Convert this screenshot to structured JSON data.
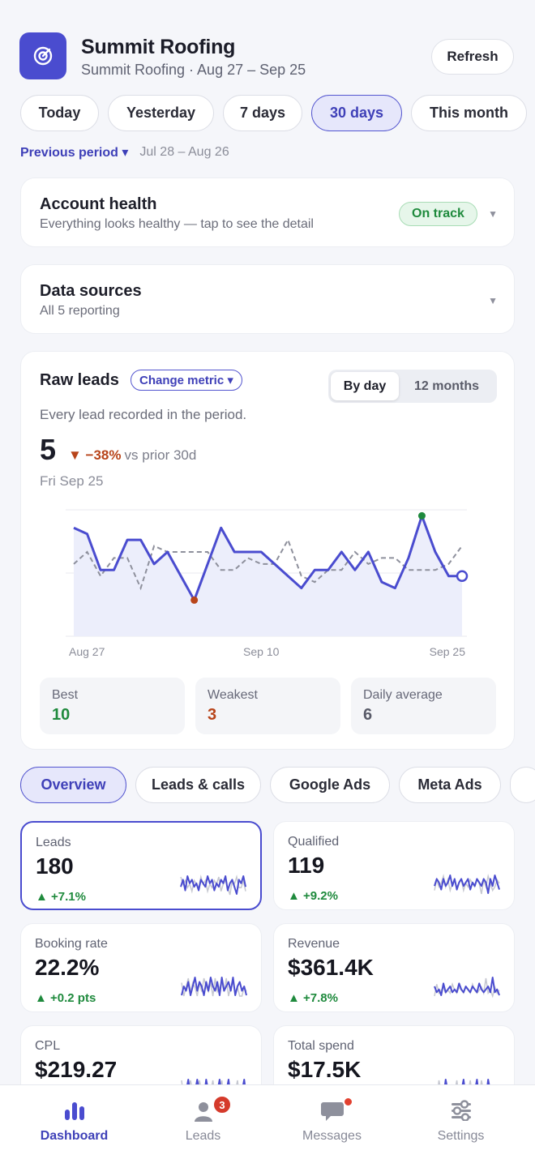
{
  "header": {
    "title": "Summit Roofing",
    "subtitle": "Summit Roofing · Aug 27 – Sep 25",
    "refresh_label": "Refresh",
    "logo_icon": "target-icon",
    "accent": "#4a4ccf"
  },
  "ranges": [
    "Today",
    "Yesterday",
    "7 days",
    "30 days",
    "This month"
  ],
  "active_range": "30 days",
  "compare": {
    "label": "Previous period ▾",
    "dates": "Jul 28 – Aug 26"
  },
  "health": {
    "title": "Account health",
    "subtitle": "Everything looks healthy — tap to see the detail",
    "badge": "On track"
  },
  "sources": {
    "title": "Data sources",
    "subtitle": "All 5 reporting"
  },
  "chart_card": {
    "title": "Raw leads",
    "metric_button": "Change metric ▾",
    "view_day": "By day",
    "view_months": "12 months",
    "description": "Every lead recorded in the period.",
    "value": "5",
    "delta": "▼ −38%",
    "delta_vs": "vs prior 30d",
    "date": "Fri Sep 25",
    "stats": [
      {
        "label": "Best",
        "value": "10",
        "color": "#1f8a3d"
      },
      {
        "label": "Weakest",
        "value": "3",
        "color": "#b8441a"
      },
      {
        "label": "Daily average",
        "value": "6",
        "color": "#585a68"
      }
    ]
  },
  "chart_data": {
    "type": "line",
    "x": [
      "Aug 27",
      "Aug 28",
      "Aug 29",
      "Aug 30",
      "Aug 31",
      "Sep 1",
      "Sep 2",
      "Sep 3",
      "Sep 4",
      "Sep 5",
      "Sep 6",
      "Sep 7",
      "Sep 8",
      "Sep 9",
      "Sep 10",
      "Sep 11",
      "Sep 12",
      "Sep 13",
      "Sep 14",
      "Sep 15",
      "Sep 16",
      "Sep 17",
      "Sep 18",
      "Sep 19",
      "Sep 20",
      "Sep 21",
      "Sep 22",
      "Sep 23",
      "Sep 24",
      "Sep 25"
    ],
    "x_tick_labels": [
      "Aug 27",
      "Sep 10",
      "Sep 25"
    ],
    "series": [
      {
        "values": [
          9,
          8.5,
          5.5,
          5.5,
          8,
          8,
          6,
          7,
          5,
          3,
          6,
          9,
          7,
          7,
          7,
          6,
          5,
          4,
          5.5,
          5.5,
          7,
          5.5,
          7,
          4.5,
          4,
          6.5,
          10,
          7,
          5,
          5
        ]
      },
      {
        "values": [
          6,
          7,
          5,
          6.5,
          6.5,
          4,
          7.5,
          7,
          7,
          7,
          7,
          5.5,
          5.5,
          6.5,
          6,
          6,
          8,
          5,
          4.5,
          5.5,
          5.5,
          7,
          6,
          6.5,
          6.5,
          5.5,
          5.5,
          5.5,
          6,
          7.5
        ]
      }
    ],
    "best_index": 26,
    "weakest_index": 9,
    "ylim": [
      0,
      10.5
    ],
    "grid": true
  },
  "tabs": [
    "Overview",
    "Leads & calls",
    "Google Ads",
    "Meta Ads"
  ],
  "active_tab": "Overview",
  "kpis": [
    {
      "label": "Leads",
      "value": "180",
      "delta": "▲ +7.1%",
      "selected": true,
      "spark": [
        4,
        6,
        3,
        7,
        5,
        6,
        4,
        5,
        3,
        6,
        5,
        4,
        7,
        5,
        6,
        3,
        5,
        4,
        6,
        5,
        7,
        3,
        5,
        6,
        4,
        2,
        6,
        5,
        7,
        4
      ]
    },
    {
      "label": "Qualified",
      "value": "119",
      "delta": "▲ +9.2%",
      "selected": false,
      "spark": [
        4,
        6,
        5,
        3,
        6,
        4,
        5,
        7,
        4,
        6,
        3,
        5,
        6,
        4,
        5,
        6,
        3,
        5,
        4,
        6,
        5,
        4,
        6,
        5,
        2,
        6,
        4,
        7,
        5,
        3
      ]
    },
    {
      "label": "Booking rate",
      "value": "22.2%",
      "delta": "▲ +0.2 pts",
      "selected": false,
      "spark": [
        3,
        5,
        4,
        6,
        3,
        5,
        7,
        4,
        6,
        5,
        3,
        6,
        4,
        7,
        5,
        4,
        6,
        3,
        7,
        4,
        5,
        6,
        4,
        7,
        3,
        5,
        6,
        4,
        5,
        3
      ]
    },
    {
      "label": "Revenue",
      "value": "$361.4K",
      "delta": "▲ +7.8%",
      "selected": false,
      "spark": [
        5,
        3,
        4,
        2,
        6,
        3,
        4,
        5,
        3,
        4,
        3,
        6,
        4,
        3,
        5,
        4,
        3,
        5,
        4,
        3,
        6,
        4,
        3,
        4,
        5,
        3,
        8,
        3,
        4,
        2
      ]
    },
    {
      "label": "CPL",
      "value": "$219.27",
      "delta": "",
      "selected": false,
      "spark": [
        3,
        5,
        4,
        6,
        3,
        5,
        4,
        6,
        4,
        5,
        3,
        6,
        4,
        5,
        3,
        5,
        4,
        6,
        3,
        5,
        4,
        6,
        3,
        4,
        5,
        3,
        5,
        4,
        6,
        3
      ]
    },
    {
      "label": "Total spend",
      "value": "$17.5K",
      "delta": "",
      "selected": false,
      "spark": [
        4,
        3,
        5,
        4,
        3,
        6,
        4,
        3,
        5,
        4,
        3,
        5,
        4,
        6,
        3,
        4,
        5,
        3,
        4,
        6,
        3,
        5,
        4,
        3,
        6,
        4,
        3,
        5,
        4,
        3
      ]
    }
  ],
  "nav": [
    {
      "label": "Dashboard",
      "icon": "bar-chart-icon",
      "active": true
    },
    {
      "label": "Leads",
      "icon": "user-icon",
      "badge": "3"
    },
    {
      "label": "Messages",
      "icon": "chat-bubble-icon",
      "dot": true
    },
    {
      "label": "Settings",
      "icon": "sliders-icon"
    }
  ]
}
